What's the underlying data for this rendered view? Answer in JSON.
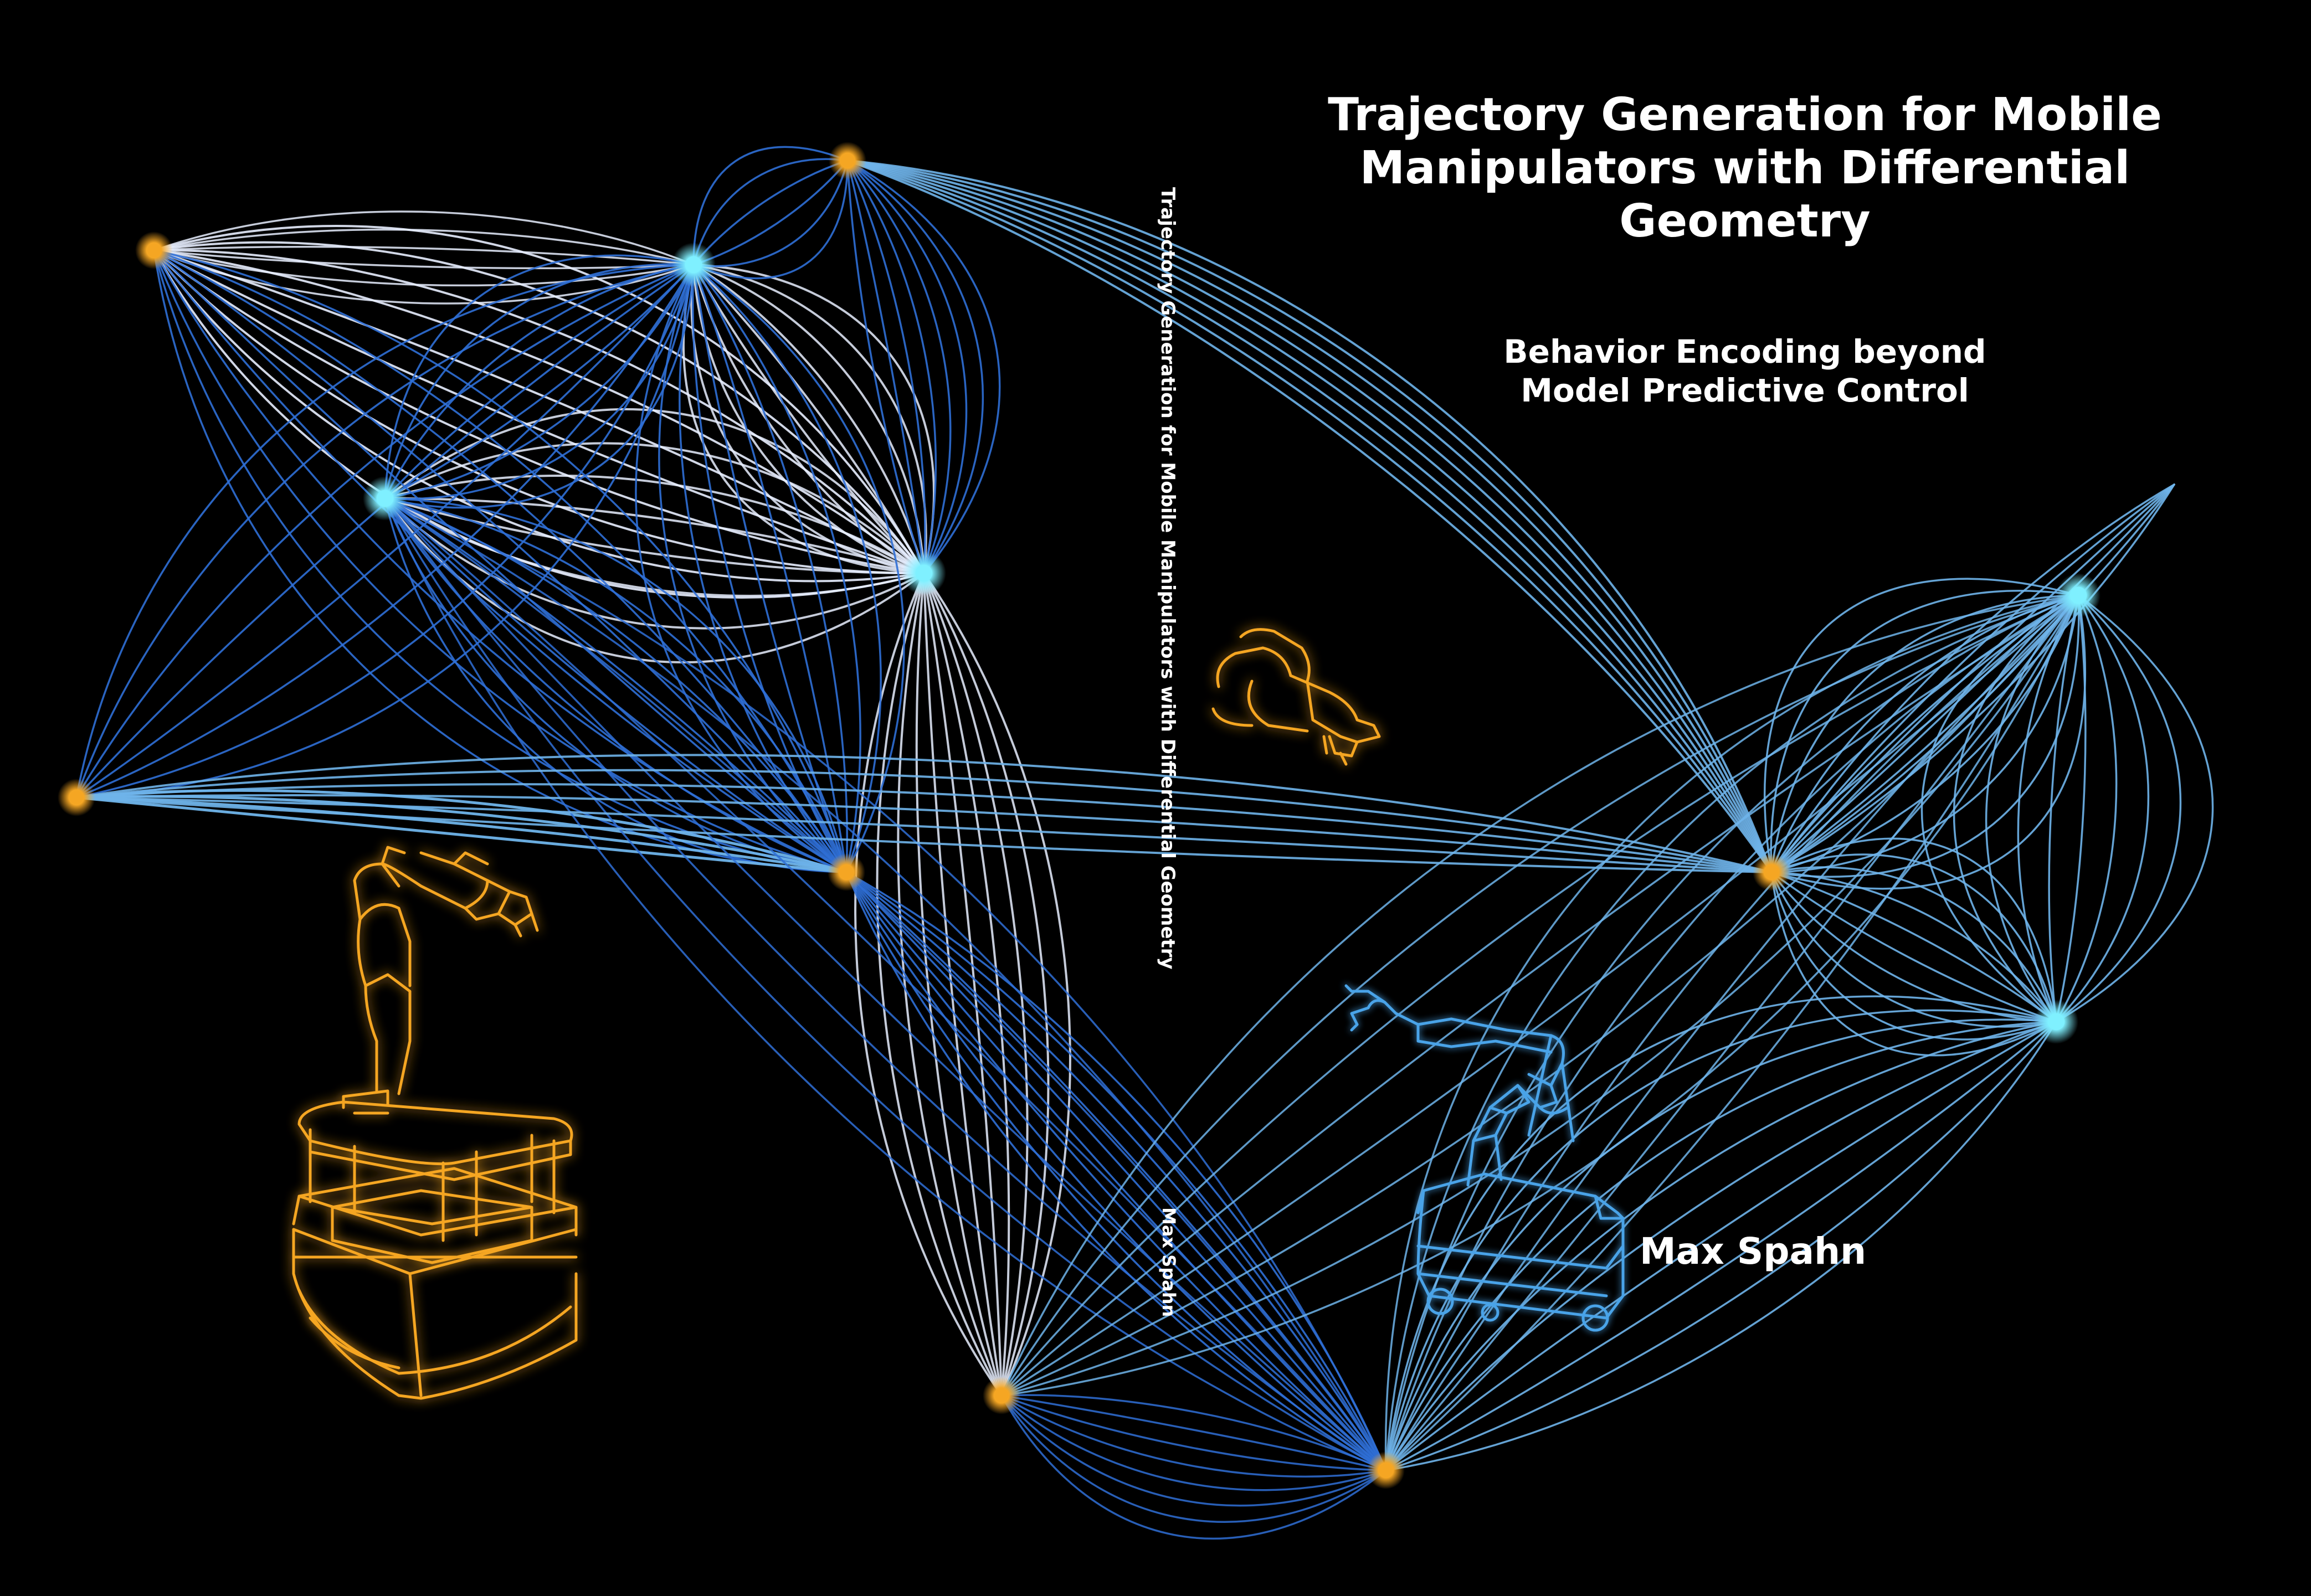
{
  "cover": {
    "title": "Trajectory Generation for Mobile Manipulators with Differential Geometry",
    "subtitle_line1": "Behavior Encoding beyond",
    "subtitle_line2": "Model Predictive Control",
    "author": "Max Spahn"
  },
  "spine": {
    "title": "Trajectory Generation for Mobile Manipulators with Differential Geometry",
    "author": "Max Spahn"
  },
  "colors": {
    "background": "#000000",
    "text": "#ffffff",
    "orange_node": "#f5a623",
    "cyan_node": "#7ff0ff",
    "curve_white": "#e8eeff",
    "curve_blue": "#2f6fd6",
    "curve_light_blue": "#6fb4ea",
    "robot_orange": "#f5a623",
    "robot_blue": "#4aa3e8"
  },
  "illustrations": {
    "robot_left": "mobile-manipulator-orange-icon",
    "gripper_center": "gripper-orange-icon",
    "robot_right": "mobile-manipulator-blue-icon"
  }
}
